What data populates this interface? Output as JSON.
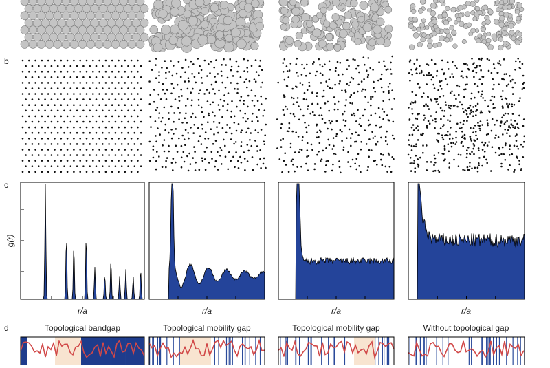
{
  "panel_labels": [
    "b",
    "c",
    "d"
  ],
  "y_axis_label": "g(r)",
  "x_axis_labels": [
    "r/a",
    "r/a",
    "r/a",
    "r/a"
  ],
  "titles": [
    "Topological bandgap",
    "Topological mobility gap",
    "Topological mobility gap",
    "Without topological gap"
  ]
}
